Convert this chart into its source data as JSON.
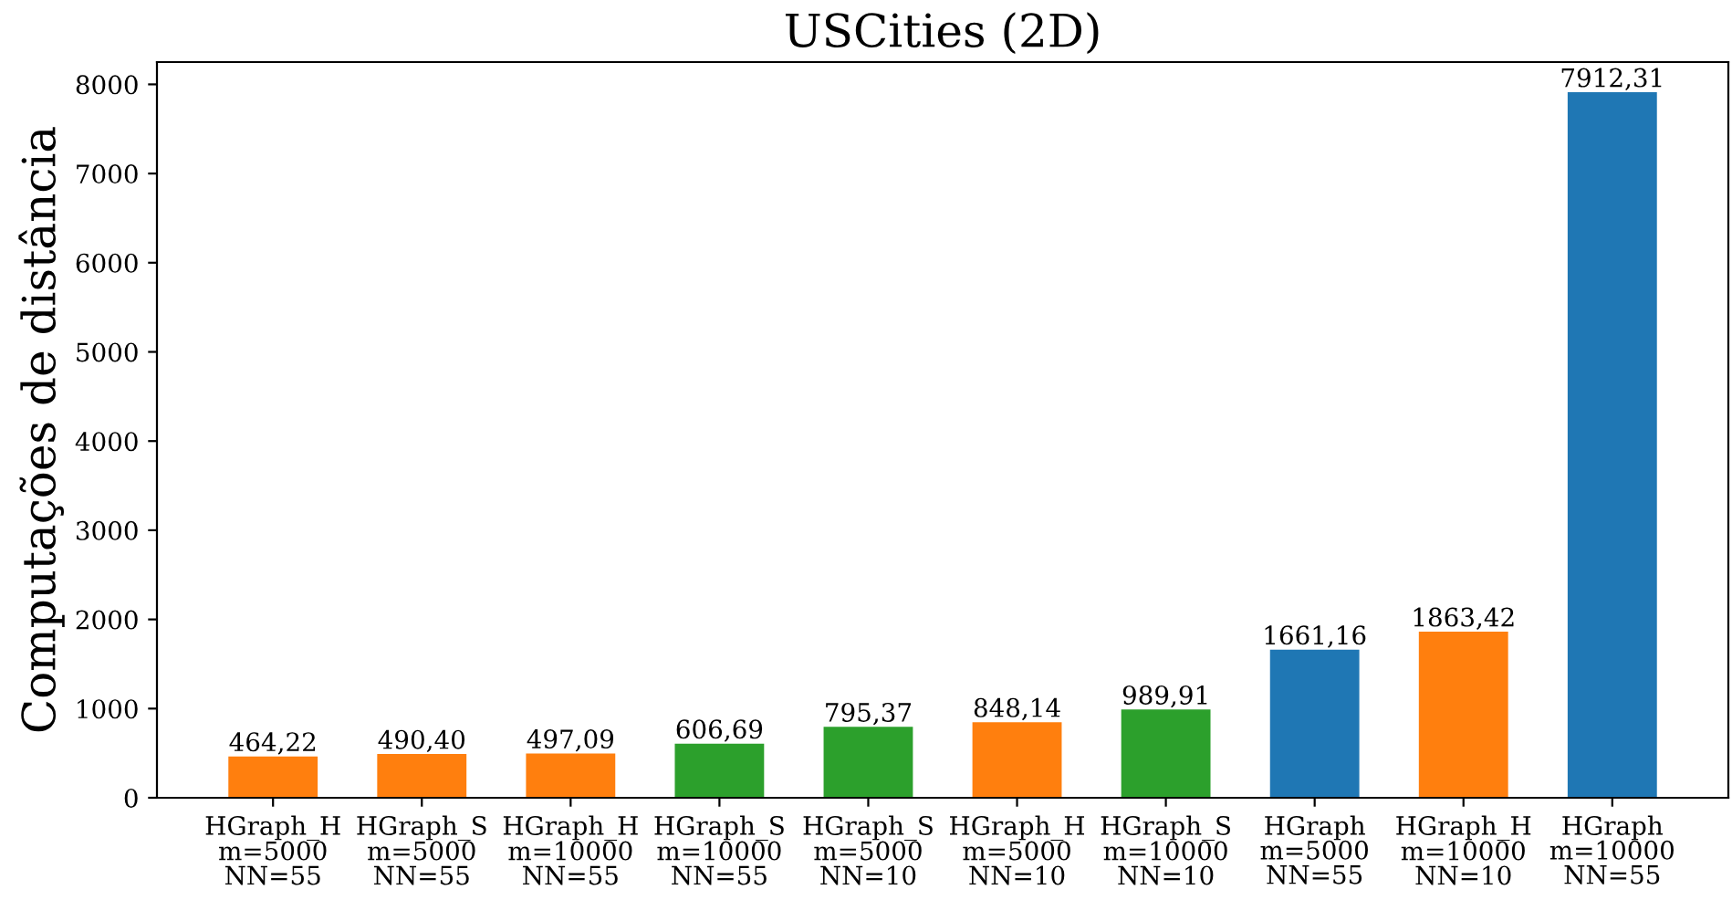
{
  "chart_data": {
    "type": "bar",
    "title": "USCities (2D)",
    "ylabel": "Computações de distância",
    "categories": [
      "HGraph_H\nm=5000\nNN=55",
      "HGraph_S\nm=5000\nNN=55",
      "HGraph_H\nm=10000\nNN=55",
      "HGraph_S\nm=10000\nNN=55",
      "HGraph_S\nm=5000\nNN=10",
      "HGraph_H\nm=5000\nNN=10",
      "HGraph_S\nm=10000\nNN=10",
      "HGraph\nm=5000\nNN=55",
      "HGraph_H\nm=10000\nNN=10",
      "HGraph\nm=10000\nNN=55"
    ],
    "values": [
      464.22,
      490.4,
      497.09,
      606.69,
      795.37,
      848.14,
      989.91,
      1661.16,
      1863.42,
      7912.31
    ],
    "value_labels": [
      "464,22",
      "490,40",
      "497,09",
      "606,69",
      "795,37",
      "848,14",
      "989,91",
      "1661,16",
      "1863,42",
      "7912,31"
    ],
    "colors": [
      "#ff7f0e",
      "#ff7f0e",
      "#ff7f0e",
      "#2ca02c",
      "#2ca02c",
      "#ff7f0e",
      "#2ca02c",
      "#1f77b4",
      "#ff7f0e",
      "#1f77b4"
    ],
    "ylim": [
      0,
      8250
    ],
    "yticks": [
      0,
      1000,
      2000,
      3000,
      4000,
      5000,
      6000,
      7000,
      8000
    ],
    "grid": false,
    "legend": false
  }
}
